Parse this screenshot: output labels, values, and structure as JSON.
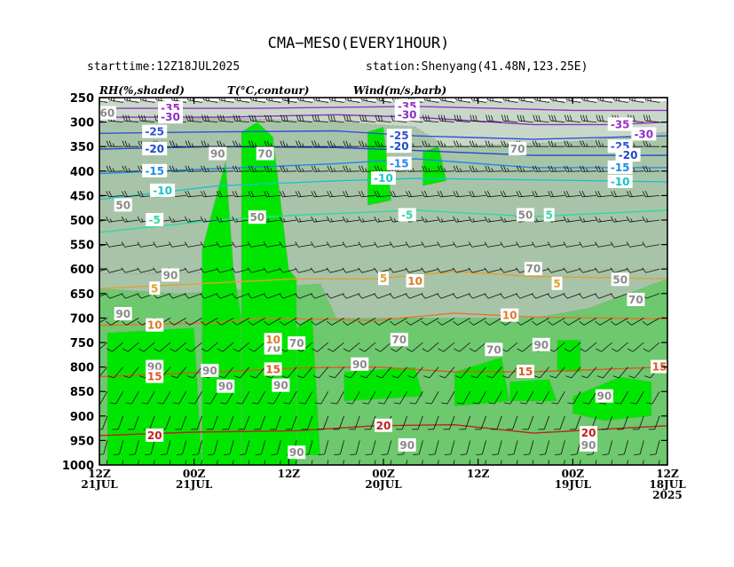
{
  "chart_data": {
    "type": "heatmap",
    "title": "CMA−MESO(EVERY1HOUR)",
    "starttime": "starttime:12Z18JUL2025",
    "station": "station:Shenyang(41.48N,123.25E)",
    "headers": [
      "RH(%,shaded)",
      "T(°C,contour)",
      "Wind(m/s,barb)"
    ],
    "y_axis": {
      "ticks": [
        250,
        300,
        350,
        400,
        450,
        500,
        550,
        600,
        650,
        700,
        750,
        800,
        850,
        900,
        950,
        1000
      ],
      "ylim": [
        250,
        1000
      ],
      "inverted": true
    },
    "x_axis": {
      "direction": "reversed",
      "ticks": [
        {
          "hour": 0,
          "line1": "12Z",
          "line2": "21JUL",
          "line3": ""
        },
        {
          "hour": 12,
          "line1": "00Z",
          "line2": "21JUL",
          "line3": ""
        },
        {
          "hour": 24,
          "line1": "12Z",
          "line2": "",
          "line3": ""
        },
        {
          "hour": 36,
          "line1": "00Z",
          "line2": "20JUL",
          "line3": ""
        },
        {
          "hour": 48,
          "line1": "12Z",
          "line2": "",
          "line3": ""
        },
        {
          "hour": 60,
          "line1": "00Z",
          "line2": "19JUL",
          "line3": ""
        },
        {
          "hour": 72,
          "line1": "12Z",
          "line2": "18JUL",
          "line3": "2025"
        }
      ],
      "xlim": [
        0,
        72
      ]
    },
    "shading": {
      "levels": [
        50,
        60,
        70,
        80,
        90
      ],
      "colors": [
        "#e4ece4",
        "#c8d8c8",
        "#a8c4a8",
        "#6ec86e",
        "#00e600"
      ]
    },
    "rh_regions": [
      {
        "level": 60,
        "points": [
          [
            0,
            258
          ],
          [
            72,
            258
          ],
          [
            72,
            700
          ],
          [
            0,
            700
          ]
        ]
      },
      {
        "level": 70,
        "points": [
          [
            0,
            300
          ],
          [
            15,
            290
          ],
          [
            30,
            300
          ],
          [
            40,
            310
          ],
          [
            44,
            350
          ],
          [
            60,
            340
          ],
          [
            72,
            320
          ],
          [
            72,
            1000
          ],
          [
            0,
            1000
          ]
        ]
      },
      {
        "level": 70,
        "points": [
          [
            0,
            610
          ],
          [
            72,
            600
          ],
          [
            72,
            1000
          ],
          [
            0,
            1000
          ]
        ]
      },
      {
        "level": 80,
        "points": [
          [
            0,
            640
          ],
          [
            10,
            650
          ],
          [
            20,
            640
          ],
          [
            28,
            630
          ],
          [
            30,
            700
          ],
          [
            45,
            700
          ],
          [
            55,
            700
          ],
          [
            62,
            680
          ],
          [
            72,
            620
          ],
          [
            72,
            1000
          ],
          [
            0,
            1000
          ]
        ]
      },
      {
        "level": 90,
        "points": [
          [
            1,
            730
          ],
          [
            12,
            720
          ],
          [
            13,
            1000
          ],
          [
            1,
            1000
          ]
        ]
      },
      {
        "level": 90,
        "points": [
          [
            13,
            560
          ],
          [
            15,
            440
          ],
          [
            16,
            380
          ],
          [
            17,
            600
          ],
          [
            18,
            700
          ],
          [
            18,
            1000
          ],
          [
            13,
            1000
          ]
        ]
      },
      {
        "level": 90,
        "points": [
          [
            18,
            320
          ],
          [
            20,
            300
          ],
          [
            22,
            330
          ],
          [
            24,
            600
          ],
          [
            25,
            620
          ],
          [
            25,
            1000
          ],
          [
            18,
            1000
          ]
        ]
      },
      {
        "level": 90,
        "points": [
          [
            25,
            720
          ],
          [
            27,
            700
          ],
          [
            28,
            980
          ],
          [
            25,
            980
          ]
        ]
      },
      {
        "level": 90,
        "points": [
          [
            31,
            810
          ],
          [
            40,
            800
          ],
          [
            41,
            860
          ],
          [
            31,
            870
          ]
        ]
      },
      {
        "level": 90,
        "points": [
          [
            34,
            320
          ],
          [
            36,
            310
          ],
          [
            37,
            460
          ],
          [
            34,
            470
          ]
        ]
      },
      {
        "level": 90,
        "points": [
          [
            41,
            360
          ],
          [
            43,
            350
          ],
          [
            44,
            420
          ],
          [
            41,
            430
          ]
        ]
      },
      {
        "level": 90,
        "points": [
          [
            45,
            810
          ],
          [
            51,
            780
          ],
          [
            52,
            870
          ],
          [
            45,
            880
          ]
        ]
      },
      {
        "level": 90,
        "points": [
          [
            58,
            745
          ],
          [
            61,
            745
          ],
          [
            61,
            810
          ],
          [
            58,
            810
          ]
        ]
      },
      {
        "level": 90,
        "points": [
          [
            52,
            830
          ],
          [
            57,
            825
          ],
          [
            58,
            870
          ],
          [
            52,
            870
          ]
        ]
      },
      {
        "level": 90,
        "points": [
          [
            60,
            860
          ],
          [
            66,
            820
          ],
          [
            70,
            830
          ],
          [
            70,
            900
          ],
          [
            64,
            910
          ],
          [
            60,
            895
          ]
        ]
      }
    ],
    "rh_labels": [
      {
        "text": "60",
        "hour": 1,
        "p": 282
      },
      {
        "text": "50",
        "hour": 3,
        "p": 470
      },
      {
        "text": "90",
        "hour": 9,
        "p": 613
      },
      {
        "text": "90",
        "hour": 3,
        "p": 692
      },
      {
        "text": "90",
        "hour": 7,
        "p": 800
      },
      {
        "text": "90",
        "hour": 15,
        "p": 365
      },
      {
        "text": "70",
        "hour": 21,
        "p": 365
      },
      {
        "text": "90",
        "hour": 14,
        "p": 808
      },
      {
        "text": "90",
        "hour": 16,
        "p": 840
      },
      {
        "text": "50",
        "hour": 20,
        "p": 495
      },
      {
        "text": "90",
        "hour": 23,
        "p": 838
      },
      {
        "text": "70",
        "hour": 25,
        "p": 752
      },
      {
        "text": "70",
        "hour": 22,
        "p": 762
      },
      {
        "text": "90",
        "hour": 25,
        "p": 975
      },
      {
        "text": "90",
        "hour": 33,
        "p": 795
      },
      {
        "text": "70",
        "hour": 38,
        "p": 745
      },
      {
        "text": "90",
        "hour": 39,
        "p": 960
      },
      {
        "text": "70",
        "hour": 53,
        "p": 355
      },
      {
        "text": "50",
        "hour": 54,
        "p": 490
      },
      {
        "text": "70",
        "hour": 55,
        "p": 600
      },
      {
        "text": "90",
        "hour": 56,
        "p": 755
      },
      {
        "text": "50",
        "hour": 66,
        "p": 622
      },
      {
        "text": "70",
        "hour": 68,
        "p": 663
      },
      {
        "text": "90",
        "hour": 64,
        "p": 860
      },
      {
        "text": "90",
        "hour": 62,
        "p": 960
      },
      {
        "text": "70",
        "hour": 50,
        "p": 765
      }
    ],
    "temperature_contours": [
      {
        "value": -35,
        "color": "#9b30c8",
        "points": [
          [
            0,
            272
          ],
          [
            20,
            272
          ],
          [
            40,
            268
          ],
          [
            50,
            272
          ],
          [
            60,
            276
          ],
          [
            72,
            276
          ]
        ]
      },
      {
        "value": -30,
        "color": "#8e2fc4",
        "points": [
          [
            0,
            290
          ],
          [
            15,
            290
          ],
          [
            30,
            285
          ],
          [
            40,
            290
          ],
          [
            55,
            305
          ],
          [
            65,
            305
          ],
          [
            72,
            300
          ]
        ]
      },
      {
        "value": -25,
        "color": "#3050d8",
        "points": [
          [
            0,
            323
          ],
          [
            15,
            320
          ],
          [
            30,
            318
          ],
          [
            40,
            328
          ],
          [
            55,
            335
          ],
          [
            72,
            328
          ]
        ]
      },
      {
        "value": -20,
        "color": "#1c4acc",
        "points": [
          [
            0,
            355
          ],
          [
            15,
            350
          ],
          [
            30,
            352
          ],
          [
            40,
            358
          ],
          [
            55,
            368
          ],
          [
            72,
            368
          ]
        ]
      },
      {
        "value": -15,
        "color": "#1f8ae6",
        "points": [
          [
            0,
            405
          ],
          [
            15,
            395
          ],
          [
            30,
            385
          ],
          [
            40,
            375
          ],
          [
            55,
            393
          ],
          [
            72,
            393
          ]
        ]
      },
      {
        "value": -10,
        "color": "#19c4c4",
        "points": [
          [
            0,
            458
          ],
          [
            15,
            430
          ],
          [
            30,
            420
          ],
          [
            40,
            415
          ],
          [
            55,
            418
          ],
          [
            72,
            422
          ]
        ]
      },
      {
        "value": -5,
        "color": "#30d8a0",
        "points": [
          [
            0,
            525
          ],
          [
            15,
            500
          ],
          [
            25,
            490
          ],
          [
            40,
            480
          ],
          [
            55,
            493
          ],
          [
            72,
            480
          ]
        ]
      },
      {
        "value": 5,
        "color": "#e0a030",
        "points": [
          [
            0,
            640
          ],
          [
            15,
            628
          ],
          [
            25,
            620
          ],
          [
            35,
            620
          ],
          [
            45,
            605
          ],
          [
            55,
            615
          ],
          [
            72,
            620
          ]
        ]
      },
      {
        "value": 10,
        "color": "#e07828",
        "points": [
          [
            0,
            715
          ],
          [
            15,
            710
          ],
          [
            20,
            700
          ],
          [
            35,
            705
          ],
          [
            45,
            690
          ],
          [
            55,
            698
          ],
          [
            72,
            702
          ]
        ]
      },
      {
        "value": 15,
        "color": "#e05820",
        "points": [
          [
            0,
            820
          ],
          [
            15,
            810
          ],
          [
            25,
            802
          ],
          [
            35,
            800
          ],
          [
            45,
            810
          ],
          [
            55,
            810
          ],
          [
            72,
            800
          ]
        ]
      },
      {
        "value": 20,
        "color": "#c02020",
        "points": [
          [
            0,
            940
          ],
          [
            12,
            933
          ],
          [
            25,
            930
          ],
          [
            35,
            920
          ],
          [
            45,
            918
          ],
          [
            55,
            935
          ],
          [
            72,
            920
          ]
        ]
      }
    ],
    "temperature_labels": [
      {
        "text": "-35",
        "hour": 9,
        "p": 272,
        "color": "#9b30c8"
      },
      {
        "text": "-30",
        "hour": 9,
        "p": 290,
        "color": "#8e2fc4"
      },
      {
        "text": "-25",
        "hour": 7,
        "p": 320,
        "color": "#3050d8"
      },
      {
        "text": "-20",
        "hour": 7,
        "p": 355,
        "color": "#1c4acc"
      },
      {
        "text": "-15",
        "hour": 7,
        "p": 400,
        "color": "#1f8ae6"
      },
      {
        "text": "-10",
        "hour": 8,
        "p": 440,
        "color": "#19c4c4"
      },
      {
        "text": "-5",
        "hour": 7,
        "p": 500,
        "color": "#30d8a0"
      },
      {
        "text": "5",
        "hour": 7,
        "p": 640,
        "color": "#e0a030"
      },
      {
        "text": "10",
        "hour": 7,
        "p": 715,
        "color": "#e07828"
      },
      {
        "text": "15",
        "hour": 7,
        "p": 820,
        "color": "#e05820"
      },
      {
        "text": "20",
        "hour": 7,
        "p": 940,
        "color": "#c02020"
      },
      {
        "text": "-35",
        "hour": 39,
        "p": 268,
        "color": "#9b30c8"
      },
      {
        "text": "-30",
        "hour": 39,
        "p": 285,
        "color": "#8e2fc4"
      },
      {
        "text": "-25",
        "hour": 38,
        "p": 328,
        "color": "#3050d8"
      },
      {
        "text": "-20",
        "hour": 38,
        "p": 350,
        "color": "#1c4acc"
      },
      {
        "text": "-15",
        "hour": 38,
        "p": 385,
        "color": "#1f8ae6"
      },
      {
        "text": "-10",
        "hour": 36,
        "p": 415,
        "color": "#19c4c4"
      },
      {
        "text": "-5",
        "hour": 39,
        "p": 490,
        "color": "#30d8a0"
      },
      {
        "text": "5",
        "hour": 36,
        "p": 620,
        "color": "#e0a030"
      },
      {
        "text": "10",
        "hour": 40,
        "p": 625,
        "color": "#e07828"
      },
      {
        "text": "10",
        "hour": 22,
        "p": 745,
        "color": "#e07828"
      },
      {
        "text": "15",
        "hour": 22,
        "p": 805,
        "color": "#e05820"
      },
      {
        "text": "20",
        "hour": 36,
        "p": 920,
        "color": "#c02020"
      },
      {
        "text": "5",
        "hour": 57,
        "p": 490,
        "color": "#30d8a0"
      },
      {
        "text": "5",
        "hour": 58,
        "p": 630,
        "color": "#e0a030"
      },
      {
        "text": "10",
        "hour": 52,
        "p": 695,
        "color": "#e07828"
      },
      {
        "text": "15",
        "hour": 54,
        "p": 810,
        "color": "#e05820"
      },
      {
        "text": "20",
        "hour": 62,
        "p": 935,
        "color": "#c02020"
      },
      {
        "text": "-35",
        "hour": 66,
        "p": 305,
        "color": "#9b30c8"
      },
      {
        "text": "-30",
        "hour": 69,
        "p": 325,
        "color": "#8e2fc4"
      },
      {
        "text": "-25",
        "hour": 66,
        "p": 350,
        "color": "#3050d8"
      },
      {
        "text": "-20",
        "hour": 67,
        "p": 368,
        "color": "#1c4acc"
      },
      {
        "text": "-15",
        "hour": 66,
        "p": 393,
        "color": "#1f8ae6"
      },
      {
        "text": "-10",
        "hour": 66,
        "p": 422,
        "color": "#19c4c4"
      },
      {
        "text": "15",
        "hour": 71,
        "p": 800,
        "color": "#e05820"
      }
    ],
    "wind": {
      "pressure_levels": [
        260,
        300,
        350,
        400,
        450,
        500,
        550,
        600,
        650,
        700,
        750,
        800,
        850,
        900,
        950,
        990
      ],
      "hour_step": 2,
      "directions_deg": [
        280,
        275,
        270,
        268,
        265,
        262,
        260,
        255,
        250,
        240,
        230,
        220,
        210,
        200,
        195,
        190
      ],
      "speeds_ms": [
        30,
        28,
        26,
        24,
        20,
        16,
        12,
        10,
        8,
        8,
        8,
        10,
        10,
        12,
        10,
        8
      ]
    },
    "grid": false,
    "legend": "none"
  }
}
